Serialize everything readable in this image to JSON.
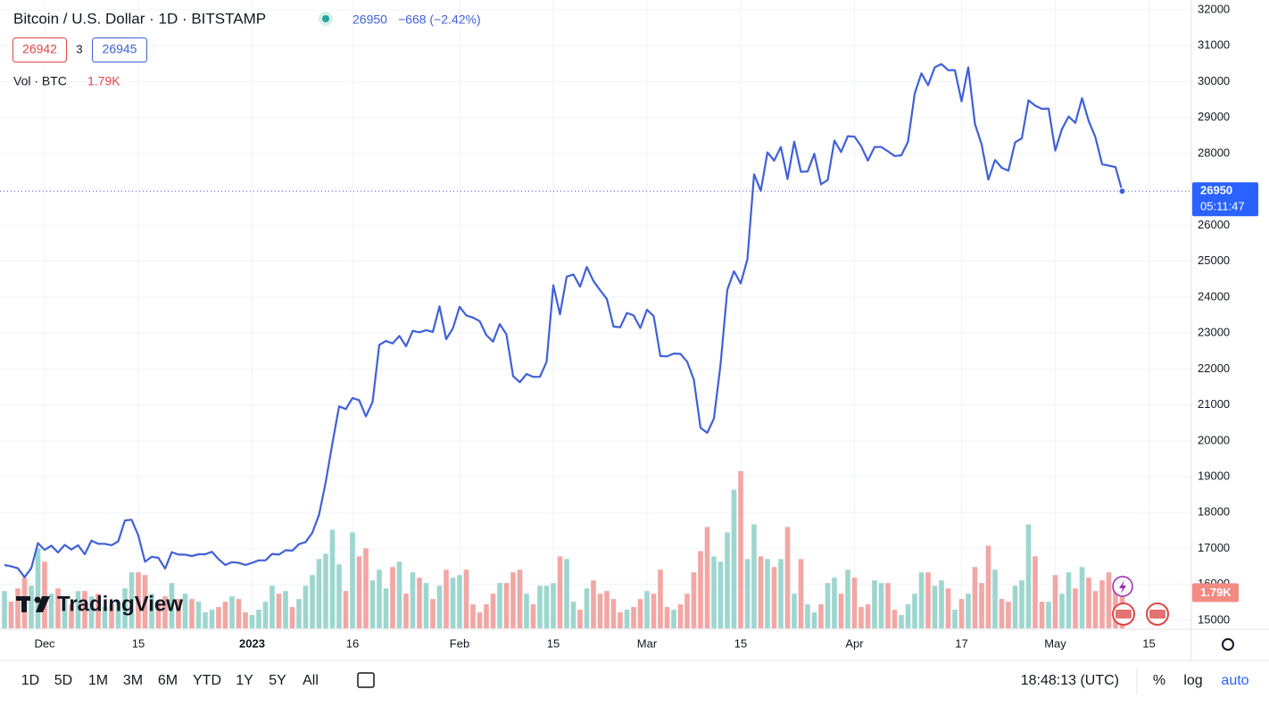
{
  "chart_data": {
    "type": "line",
    "title": "Bitcoin / U.S. Dollar · 1D · BITSTAMP",
    "change": "−668 (−2.42%)",
    "bid": "26942",
    "spread": "3",
    "ask": "26945",
    "countdown": "05:11:47",
    "watermark": "TradingView",
    "color": "#3f60d9",
    "grid": true,
    "log_scale": false,
    "ylim": [
      15000,
      32000
    ],
    "yticks": [
      15000,
      16000,
      17000,
      18000,
      19000,
      20000,
      21000,
      22000,
      23000,
      24000,
      25000,
      26000,
      27000,
      28000,
      29000,
      30000,
      31000,
      32000
    ],
    "categories": [
      null,
      null,
      null,
      null,
      null,
      null,
      "Dec",
      null,
      null,
      null,
      null,
      null,
      null,
      null,
      null,
      null,
      null,
      null,
      null,
      null,
      "15",
      null,
      null,
      null,
      null,
      null,
      null,
      null,
      null,
      null,
      null,
      null,
      null,
      null,
      null,
      null,
      null,
      "2023",
      null,
      null,
      null,
      null,
      null,
      null,
      null,
      null,
      null,
      null,
      null,
      null,
      null,
      null,
      "16",
      null,
      null,
      null,
      null,
      null,
      null,
      null,
      null,
      null,
      null,
      null,
      null,
      null,
      null,
      null,
      "Feb",
      null,
      null,
      null,
      null,
      null,
      null,
      null,
      null,
      null,
      null,
      null,
      null,
      null,
      "15",
      null,
      null,
      null,
      null,
      null,
      null,
      null,
      null,
      null,
      null,
      null,
      null,
      null,
      "Mar",
      null,
      null,
      null,
      null,
      null,
      null,
      null,
      null,
      null,
      null,
      null,
      null,
      null,
      "15",
      null,
      null,
      null,
      null,
      null,
      null,
      null,
      null,
      null,
      null,
      null,
      null,
      null,
      null,
      null,
      null,
      "Apr",
      null,
      null,
      null,
      null,
      null,
      null,
      null,
      null,
      null,
      null,
      null,
      null,
      null,
      null,
      null,
      "17",
      null,
      null,
      null,
      null,
      null,
      null,
      null,
      null,
      null,
      null,
      null,
      null,
      null,
      "May",
      null,
      null,
      null,
      null,
      null,
      null,
      null,
      null,
      null,
      null,
      null,
      null,
      null,
      "15"
    ],
    "values": [
      16540,
      16500,
      16450,
      16200,
      16450,
      17150,
      16960,
      17080,
      16890,
      17100,
      16970,
      17090,
      16840,
      17220,
      17130,
      17130,
      17090,
      17200,
      17780,
      17800,
      17360,
      16630,
      16770,
      16740,
      16440,
      16900,
      16830,
      16830,
      16790,
      16840,
      16840,
      16910,
      16700,
      16540,
      16620,
      16600,
      16540,
      16600,
      16670,
      16670,
      16850,
      16830,
      16950,
      16940,
      17120,
      17180,
      17440,
      17940,
      18850,
      19930,
      20960,
      20880,
      21190,
      21130,
      20680,
      21080,
      22670,
      22780,
      22710,
      22920,
      22630,
      23060,
      23020,
      23080,
      23030,
      23740,
      22830,
      23130,
      23730,
      23490,
      23430,
      23330,
      22940,
      22760,
      23250,
      22960,
      21800,
      21630,
      21860,
      21780,
      21780,
      22200,
      24330,
      23520,
      24570,
      24630,
      24290,
      24840,
      24450,
      24190,
      23950,
      23180,
      23160,
      23560,
      23490,
      23140,
      23650,
      23470,
      22360,
      22350,
      22430,
      22420,
      22200,
      21700,
      20360,
      20220,
      20620,
      22140,
      24200,
      24720,
      24380,
      25050,
      27420,
      26960,
      28030,
      27800,
      28180,
      27290,
      28330,
      27490,
      27500,
      27990,
      27140,
      27260,
      28360,
      28040,
      28480,
      28470,
      28200,
      27800,
      28180,
      28180,
      28060,
      27930,
      27950,
      28330,
      29670,
      30230,
      29900,
      30400,
      30490,
      30320,
      30320,
      29450,
      30400,
      28820,
      28250,
      27270,
      27820,
      27600,
      27520,
      28310,
      28420,
      29480,
      29330,
      29240,
      29250,
      28080,
      28680,
      29030,
      28850,
      29540,
      28900,
      28450,
      27700,
      27660,
      27620,
      26950,
      null,
      null,
      null,
      null
    ],
    "volume": {
      "type": "bar",
      "title": "Vol · BTC",
      "axis": "y2",
      "up_color": "#9dd6cf",
      "down_color": "#f2a7a4",
      "values": [
        1400,
        1000,
        1500,
        1900,
        1600,
        3000,
        2500,
        1300,
        1500,
        1200,
        900,
        1400,
        1400,
        1200,
        1300,
        800,
        900,
        1000,
        1500,
        2100,
        2100,
        2000,
        1300,
        1000,
        1200,
        1700,
        1100,
        1300,
        1100,
        1000,
        600,
        700,
        800,
        1000,
        1200,
        1100,
        600,
        500,
        700,
        1000,
        1600,
        1300,
        1400,
        800,
        1100,
        1600,
        2000,
        2600,
        2800,
        3700,
        2400,
        1400,
        3600,
        2700,
        3000,
        1800,
        2200,
        1500,
        2300,
        2500,
        1300,
        2100,
        1900,
        1700,
        1100,
        1600,
        2200,
        1900,
        2000,
        2200,
        900,
        600,
        900,
        1300,
        1700,
        1700,
        2100,
        2200,
        1300,
        900,
        1600,
        1600,
        1700,
        2700,
        2600,
        1000,
        700,
        1500,
        1800,
        1300,
        1400,
        1100,
        600,
        700,
        800,
        1100,
        1400,
        1300,
        2200,
        800,
        700,
        900,
        1300,
        2100,
        2900,
        3800,
        2700,
        2500,
        3600,
        5200,
        5900,
        2600,
        3900,
        2700,
        2600,
        2300,
        2600,
        3800,
        1300,
        2600,
        900,
        600,
        900,
        1700,
        1900,
        1300,
        2200,
        1900,
        800,
        900,
        1800,
        1700,
        1700,
        700,
        500,
        900,
        1300,
        2100,
        2100,
        1600,
        1800,
        1500,
        700,
        1100,
        1300,
        2300,
        1700,
        3100,
        2200,
        1100,
        1000,
        1600,
        1800,
        3900,
        2700,
        1000,
        1000,
        2000,
        1300,
        2100,
        1500,
        2300,
        1900,
        1400,
        1800,
        2100,
        1700,
        1790,
        null,
        null,
        null,
        null
      ],
      "value_labels": [
        null,
        null,
        null,
        null,
        null,
        null,
        null,
        null,
        null,
        null,
        null,
        null,
        null,
        null,
        null,
        null,
        null,
        null,
        null,
        null,
        null,
        null,
        null,
        null,
        null,
        null,
        null,
        null,
        null,
        null,
        null,
        null,
        null,
        null,
        null,
        null,
        null,
        null,
        null,
        null,
        null,
        null,
        null,
        null,
        null,
        null,
        null,
        null,
        null,
        null,
        null,
        null,
        null,
        null,
        null,
        null,
        null,
        null,
        null,
        null,
        null,
        null,
        null,
        null,
        null,
        null,
        null,
        null,
        null,
        null,
        null,
        null,
        null,
        null,
        null,
        null,
        null,
        null,
        null,
        null,
        null,
        null,
        null,
        null,
        null,
        null,
        null,
        null,
        null,
        null,
        null,
        null,
        null,
        null,
        null,
        null,
        null,
        null,
        null,
        null,
        null,
        null,
        null,
        null,
        null,
        null,
        null,
        null,
        null,
        null,
        null,
        null,
        null,
        null,
        null,
        null,
        null,
        null,
        null,
        null,
        null,
        null,
        null,
        null,
        null,
        null,
        null,
        null,
        null,
        null,
        null,
        null,
        null,
        null,
        null,
        null,
        null,
        null,
        null,
        null,
        null,
        null,
        null,
        null,
        null,
        null,
        null,
        null,
        null,
        null,
        null,
        null,
        null,
        null,
        null,
        null,
        null,
        null,
        null,
        null,
        null,
        null,
        null,
        null,
        null,
        null,
        null,
        "1.79K",
        null,
        null,
        null,
        null
      ],
      "y2lim": [
        0,
        23000
      ]
    },
    "toolbar": {
      "ranges": [
        "1D",
        "5D",
        "1M",
        "3M",
        "6M",
        "YTD",
        "1Y",
        "5Y",
        "All"
      ],
      "time": "18:48:13 (UTC)",
      "options": [
        "%",
        "log",
        "auto"
      ]
    }
  }
}
